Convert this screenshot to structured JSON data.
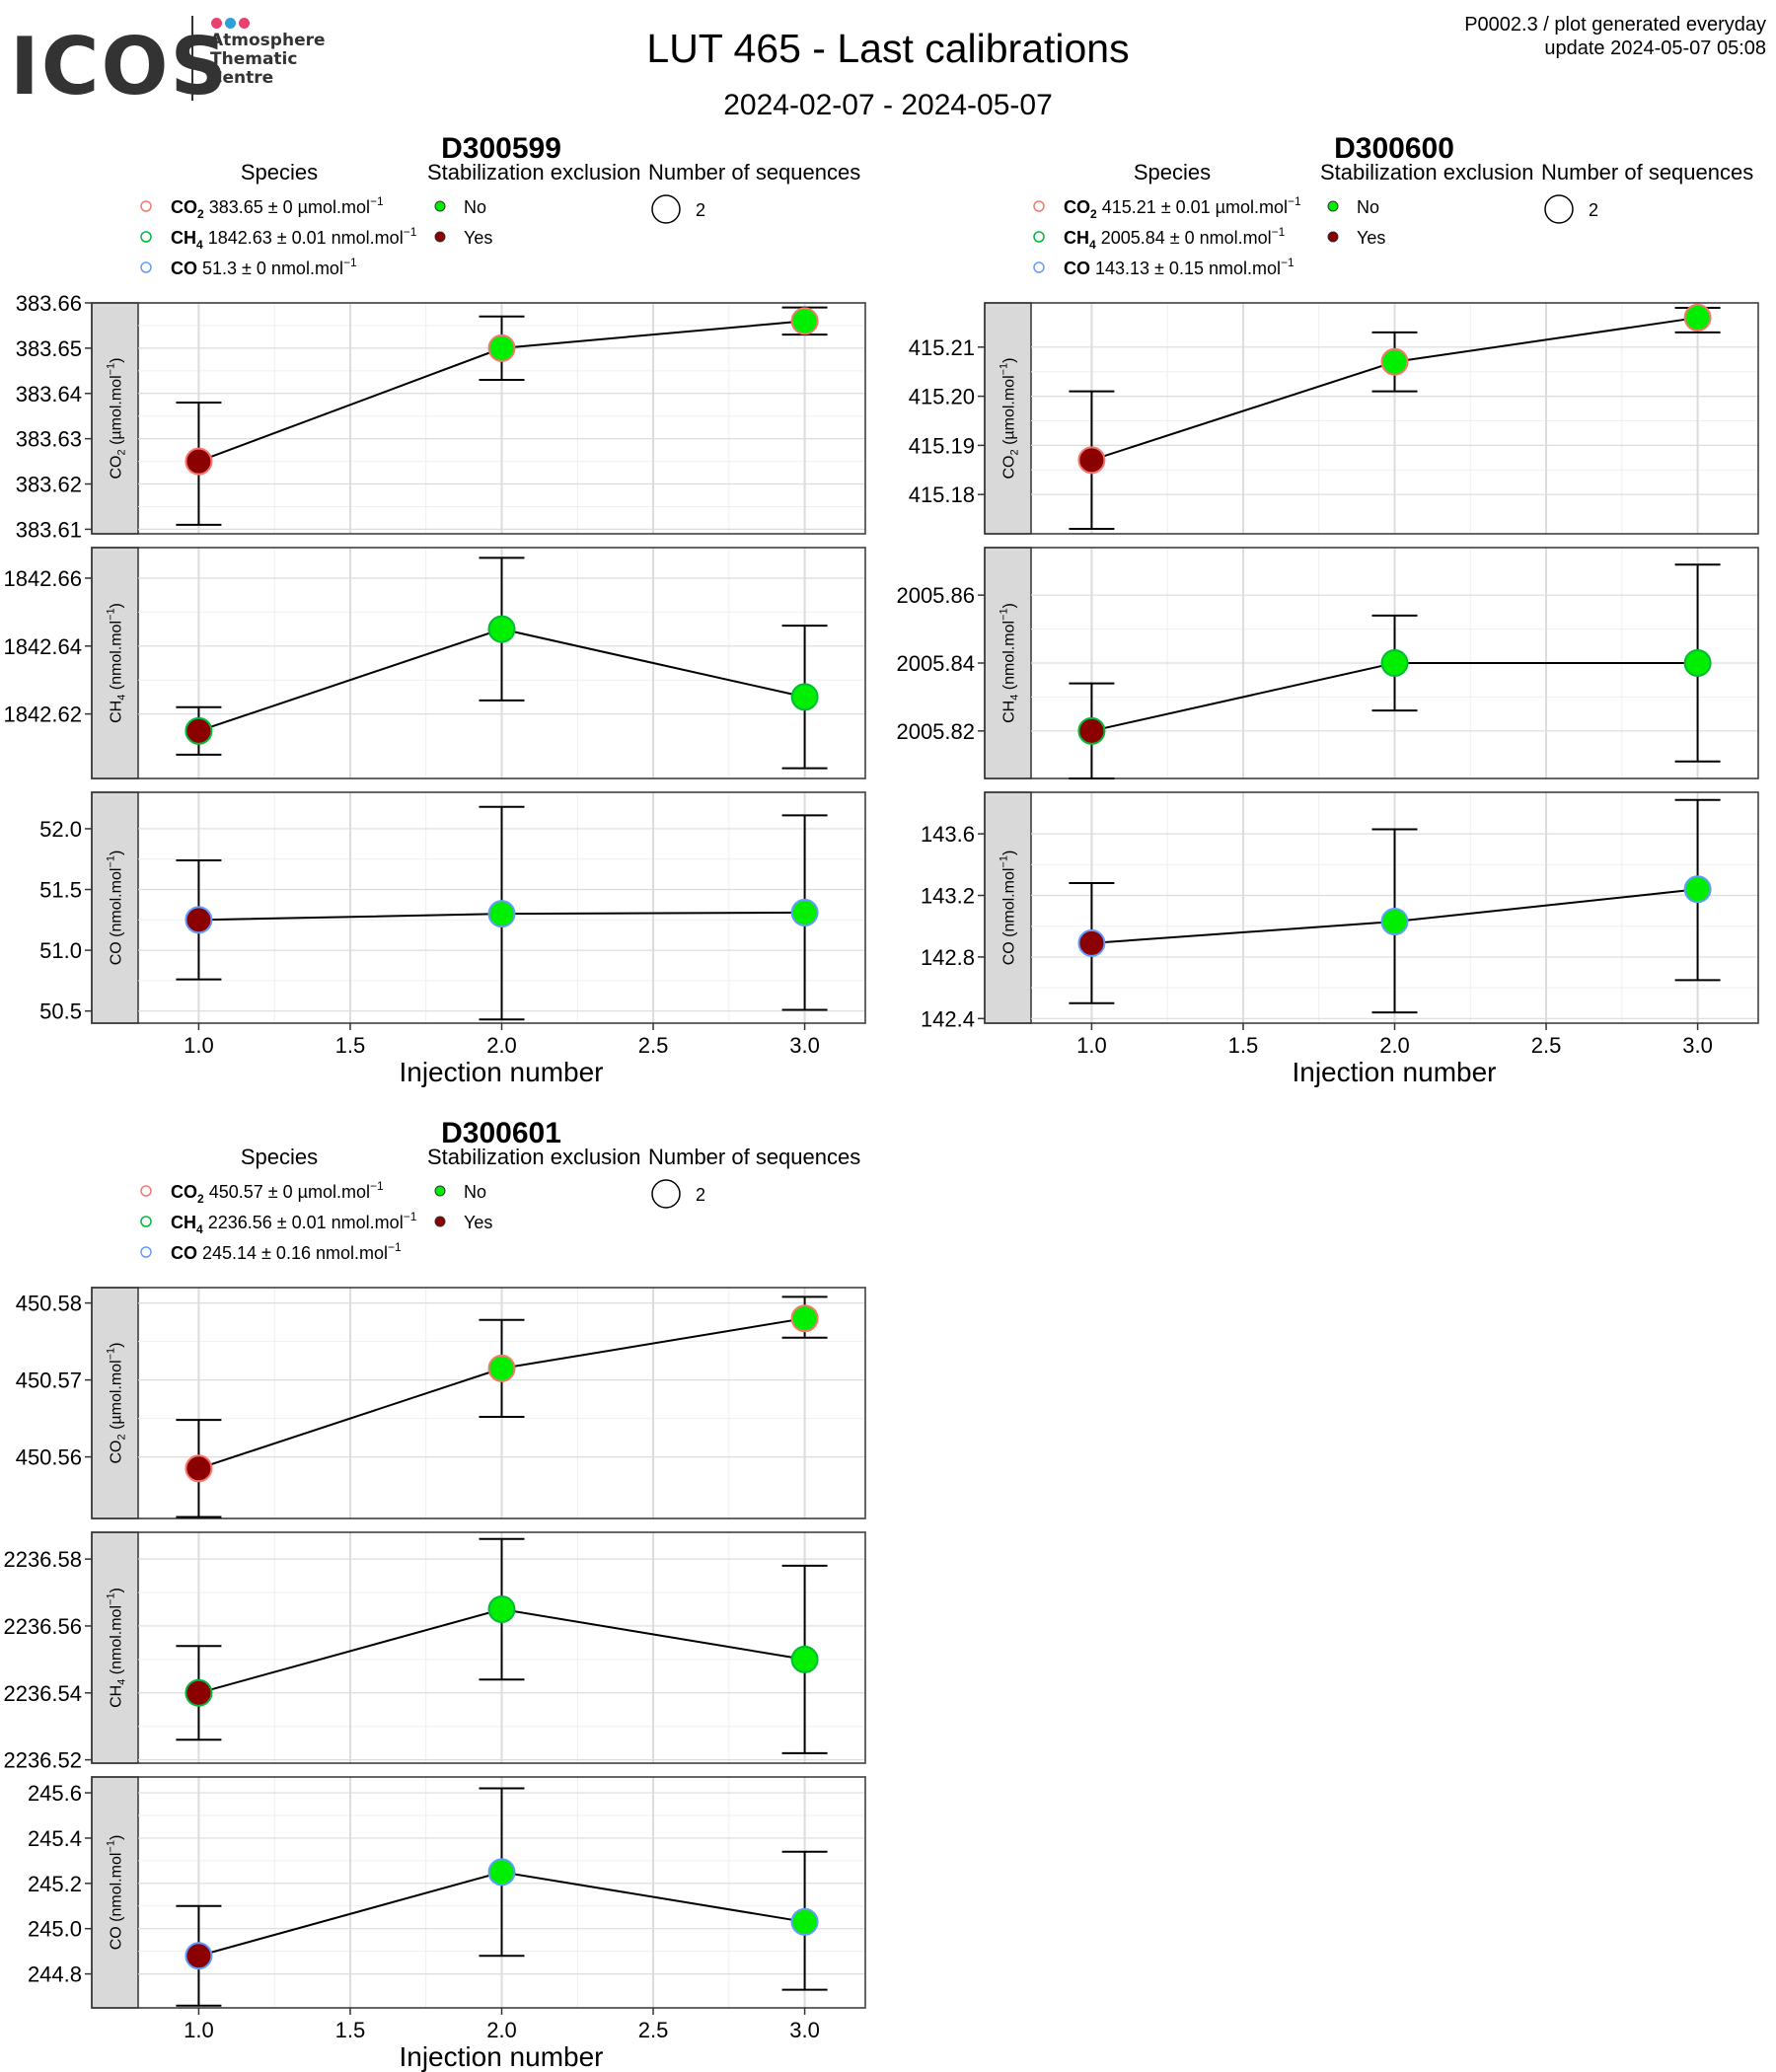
{
  "header": {
    "logo_text": "ICOS",
    "logo_line1": "Atmosphere",
    "logo_line2": "Thematic",
    "logo_line3": "Centre",
    "logo_dot_colors": [
      "#e8416e",
      "#2e9fd8",
      "#e8416e"
    ],
    "title": "LUT 465 - Last calibrations",
    "subtitle": "2024-02-07 - 2024-05-07",
    "meta_line1": "P0002.3 / plot generated everyday",
    "meta_line2": "update  2024-05-07 05:08"
  },
  "legend_titles": {
    "species": "Species",
    "stabilization": "Stabilization exclusion",
    "sequences": "Number of sequences"
  },
  "stabilization_items": [
    {
      "label": "No",
      "color": "#00ee00"
    },
    {
      "label": "Yes",
      "color": "#8b0000"
    }
  ],
  "sequence_label": "2",
  "species_colors": {
    "CO2": "#f8766d",
    "CH4": "#00ba38",
    "CO": "#619cff"
  },
  "colors": {
    "no_exclusion": "#00ee00",
    "exclusion": "#8b0000",
    "strip": "#d9d9d9",
    "grid": "#dcdcdc"
  },
  "x_axis": {
    "label": "Injection number",
    "ticks": [
      "1.0",
      "1.5",
      "2.0",
      "2.5",
      "3.0"
    ],
    "tick_values": [
      1.0,
      1.5,
      2.0,
      2.5,
      3.0
    ],
    "range": [
      0.8,
      3.2
    ]
  },
  "chart_data": [
    {
      "type": "scatter",
      "title": "D300599",
      "xlabel": "Injection number",
      "legend_species": [
        {
          "name": "CO",
          "sub": "2",
          "text": " 383.65 ± 0 µmol.mol",
          "sup": "−1"
        },
        {
          "name": "CH",
          "sub": "4",
          "text": " 1842.63 ± 0.01 nmol.mol",
          "sup": "−1"
        },
        {
          "name": "CO",
          "sub": "",
          "text": " 51.3 ± 0 nmol.mol",
          "sup": "−1"
        }
      ],
      "panels": [
        {
          "species": "CO2",
          "strip_name": "CO",
          "strip_sub": "2",
          "strip_unit": "µmol.mol",
          "sup": "−1",
          "ylim": [
            383.609,
            383.66
          ],
          "ticks": [
            383.61,
            383.62,
            383.63,
            383.64,
            383.65,
            383.66
          ],
          "tick_labels": [
            "383.61",
            "383.62",
            "383.63",
            "383.64",
            "383.65",
            "383.66"
          ],
          "x": [
            1,
            2,
            3
          ],
          "y": [
            383.625,
            383.65,
            383.656
          ],
          "err_low": [
            383.611,
            383.643,
            383.653
          ],
          "err_high": [
            383.638,
            383.657,
            383.659
          ],
          "excluded": [
            true,
            false,
            false
          ]
        },
        {
          "species": "CH4",
          "strip_name": "CH",
          "strip_sub": "4",
          "strip_unit": "nmol.mol",
          "sup": "−1",
          "ylim": [
            1842.601,
            1842.669
          ],
          "ticks": [
            1842.62,
            1842.64,
            1842.66
          ],
          "tick_labels": [
            "1842.62",
            "1842.64",
            "1842.66"
          ],
          "x": [
            1,
            2,
            3
          ],
          "y": [
            1842.615,
            1842.645,
            1842.625
          ],
          "err_low": [
            1842.608,
            1842.624,
            1842.604
          ],
          "err_high": [
            1842.622,
            1842.666,
            1842.646
          ],
          "excluded": [
            true,
            false,
            false
          ]
        },
        {
          "species": "CO",
          "strip_name": "CO",
          "strip_sub": "",
          "strip_unit": "nmol.mol",
          "sup": "−1",
          "ylim": [
            50.4,
            52.3
          ],
          "ticks": [
            50.5,
            51.0,
            51.5,
            52.0
          ],
          "tick_labels": [
            "50.5",
            "51.0",
            "51.5",
            "52.0"
          ],
          "x": [
            1,
            2,
            3
          ],
          "y": [
            51.25,
            51.3,
            51.31
          ],
          "err_low": [
            50.76,
            50.43,
            50.51
          ],
          "err_high": [
            51.74,
            52.18,
            52.11
          ],
          "excluded": [
            true,
            false,
            false
          ]
        }
      ]
    },
    {
      "type": "scatter",
      "title": "D300600",
      "xlabel": "Injection number",
      "legend_species": [
        {
          "name": "CO",
          "sub": "2",
          "text": " 415.21 ± 0.01 µmol.mol",
          "sup": "−1"
        },
        {
          "name": "CH",
          "sub": "4",
          "text": " 2005.84 ± 0 nmol.mol",
          "sup": "−1"
        },
        {
          "name": "CO",
          "sub": "",
          "text": " 143.13 ± 0.15 nmol.mol",
          "sup": "−1"
        }
      ],
      "panels": [
        {
          "species": "CO2",
          "strip_name": "CO",
          "strip_sub": "2",
          "strip_unit": "µmol.mol",
          "sup": "−1",
          "ylim": [
            415.172,
            415.219
          ],
          "ticks": [
            415.18,
            415.19,
            415.2,
            415.21
          ],
          "tick_labels": [
            "415.18",
            "415.19",
            "415.20",
            "415.21"
          ],
          "x": [
            1,
            2,
            3
          ],
          "y": [
            415.187,
            415.207,
            415.216
          ],
          "err_low": [
            415.173,
            415.201,
            415.213
          ],
          "err_high": [
            415.201,
            415.213,
            415.218
          ],
          "excluded": [
            true,
            false,
            false
          ]
        },
        {
          "species": "CH4",
          "strip_name": "CH",
          "strip_sub": "4",
          "strip_unit": "nmol.mol",
          "sup": "−1",
          "ylim": [
            2005.806,
            2005.874
          ],
          "ticks": [
            2005.82,
            2005.84,
            2005.86
          ],
          "tick_labels": [
            "2005.82",
            "2005.84",
            "2005.86"
          ],
          "x": [
            1,
            2,
            3
          ],
          "y": [
            2005.82,
            2005.84,
            2005.84
          ],
          "err_low": [
            2005.806,
            2005.826,
            2005.811
          ],
          "err_high": [
            2005.834,
            2005.854,
            2005.869
          ],
          "excluded": [
            true,
            false,
            false
          ]
        },
        {
          "species": "CO",
          "strip_name": "CO",
          "strip_sub": "",
          "strip_unit": "nmol.mol",
          "sup": "−1",
          "ylim": [
            142.37,
            143.87
          ],
          "ticks": [
            142.4,
            142.8,
            143.2,
            143.6
          ],
          "tick_labels": [
            "142.4",
            "142.8",
            "143.2",
            "143.6"
          ],
          "x": [
            1,
            2,
            3
          ],
          "y": [
            142.89,
            143.03,
            143.24
          ],
          "err_low": [
            142.5,
            142.44,
            142.65
          ],
          "err_high": [
            143.28,
            143.63,
            143.82
          ],
          "excluded": [
            true,
            false,
            false
          ]
        }
      ]
    },
    {
      "type": "scatter",
      "title": "D300601",
      "xlabel": "Injection number",
      "legend_species": [
        {
          "name": "CO",
          "sub": "2",
          "text": " 450.57 ± 0 µmol.mol",
          "sup": "−1"
        },
        {
          "name": "CH",
          "sub": "4",
          "text": " 2236.56 ± 0.01 nmol.mol",
          "sup": "−1"
        },
        {
          "name": "CO",
          "sub": "",
          "text": " 245.14 ± 0.16 nmol.mol",
          "sup": "−1"
        }
      ],
      "panels": [
        {
          "species": "CO2",
          "strip_name": "CO",
          "strip_sub": "2",
          "strip_unit": "µmol.mol",
          "sup": "−1",
          "ylim": [
            450.552,
            450.582
          ],
          "ticks": [
            450.56,
            450.57,
            450.58
          ],
          "tick_labels": [
            "450.56",
            "450.57",
            "450.58"
          ],
          "x": [
            1,
            2,
            3
          ],
          "y": [
            450.5585,
            450.5715,
            450.578
          ],
          "err_low": [
            450.5522,
            450.5652,
            450.5755
          ],
          "err_high": [
            450.5648,
            450.5778,
            450.5808
          ],
          "excluded": [
            true,
            false,
            false
          ]
        },
        {
          "species": "CH4",
          "strip_name": "CH",
          "strip_sub": "4",
          "strip_unit": "nmol.mol",
          "sup": "−1",
          "ylim": [
            2236.519,
            2236.588
          ],
          "ticks": [
            2236.52,
            2236.54,
            2236.56,
            2236.58
          ],
          "tick_labels": [
            "2236.52",
            "2236.54",
            "2236.56",
            "2236.58"
          ],
          "x": [
            1,
            2,
            3
          ],
          "y": [
            2236.54,
            2236.565,
            2236.55
          ],
          "err_low": [
            2236.526,
            2236.544,
            2236.522
          ],
          "err_high": [
            2236.554,
            2236.586,
            2236.578
          ],
          "excluded": [
            true,
            false,
            false
          ]
        },
        {
          "species": "CO",
          "strip_name": "CO",
          "strip_sub": "",
          "strip_unit": "nmol.mol",
          "sup": "−1",
          "ylim": [
            244.65,
            245.67
          ],
          "ticks": [
            244.8,
            245.0,
            245.2,
            245.4,
            245.6
          ],
          "tick_labels": [
            "244.8",
            "245.0",
            "245.2",
            "245.4",
            "245.6"
          ],
          "x": [
            1,
            2,
            3
          ],
          "y": [
            244.88,
            245.25,
            245.03
          ],
          "err_low": [
            244.66,
            244.88,
            244.73
          ],
          "err_high": [
            245.1,
            245.62,
            245.34
          ],
          "excluded": [
            true,
            false,
            false
          ]
        }
      ]
    }
  ]
}
